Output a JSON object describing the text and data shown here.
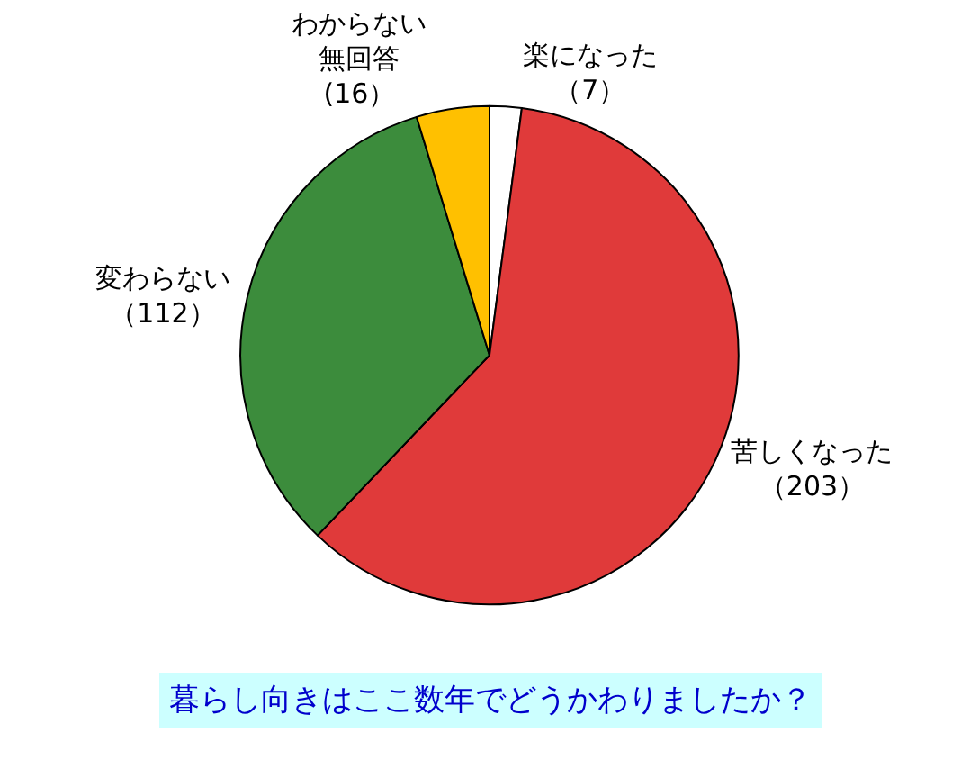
{
  "chart_data": {
    "type": "pie",
    "title": "暮らし向きはここ数年でどうかわりましたか？",
    "categories": [
      "楽になった",
      "苦しくなった",
      "変わらない",
      "わからない無回答"
    ],
    "values": [
      7,
      203,
      112,
      16
    ],
    "value_labels": [
      "（7）",
      "（203）",
      "（112）",
      "(16）"
    ],
    "colors": [
      "#ffffff",
      "#e03a3a",
      "#3c8c3c",
      "#ffc000"
    ],
    "legend": false
  }
}
